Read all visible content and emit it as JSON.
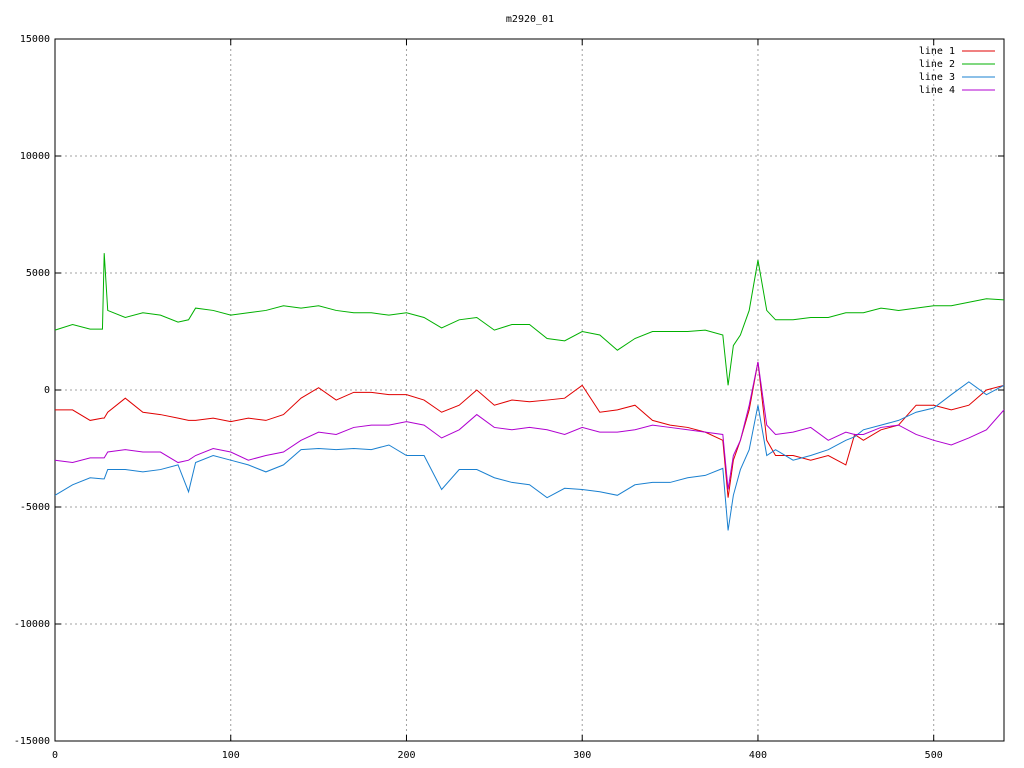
{
  "chart_data": {
    "type": "line",
    "title": "m2920_01",
    "x": [
      0,
      10,
      20,
      27,
      28,
      30,
      40,
      50,
      60,
      70,
      76,
      80,
      90,
      100,
      110,
      120,
      130,
      140,
      150,
      160,
      170,
      180,
      190,
      200,
      210,
      220,
      230,
      240,
      250,
      260,
      270,
      280,
      290,
      300,
      310,
      320,
      330,
      340,
      350,
      360,
      370,
      380,
      383,
      386,
      390,
      395,
      400,
      405,
      410,
      420,
      430,
      440,
      450,
      455,
      460,
      470,
      480,
      490,
      500,
      510,
      520,
      530,
      540
    ],
    "series": [
      {
        "name": "line 1",
        "color": "#e00000",
        "values": [
          -850,
          -850,
          -1300,
          -1200,
          -1200,
          -950,
          -350,
          -950,
          -1050,
          -1200,
          -1300,
          -1300,
          -1200,
          -1350,
          -1200,
          -1300,
          -1050,
          -350,
          100,
          -430,
          -100,
          -100,
          -200,
          -200,
          -430,
          -950,
          -650,
          0,
          -650,
          -430,
          -500,
          -430,
          -350,
          200,
          -950,
          -850,
          -650,
          -1300,
          -1500,
          -1600,
          -1800,
          -2150,
          -4600,
          -3000,
          -2150,
          -850,
          1200,
          -2150,
          -2800,
          -2800,
          -3000,
          -2800,
          -3200,
          -1900,
          -2150,
          -1700,
          -1500,
          -650,
          -650,
          -850,
          -650,
          0,
          200
        ]
      },
      {
        "name": "line 2",
        "color": "#00b000",
        "values": [
          2560,
          2800,
          2600,
          2600,
          5850,
          3400,
          3100,
          3300,
          3200,
          2900,
          3000,
          3500,
          3400,
          3200,
          3300,
          3400,
          3600,
          3500,
          3600,
          3400,
          3300,
          3300,
          3200,
          3300,
          3100,
          2650,
          3000,
          3100,
          2560,
          2800,
          2800,
          2200,
          2100,
          2500,
          2350,
          1700,
          2200,
          2500,
          2500,
          2500,
          2560,
          2350,
          200,
          1900,
          2350,
          3400,
          5550,
          3400,
          3000,
          3000,
          3100,
          3100,
          3300,
          3300,
          3300,
          3500,
          3400,
          3500,
          3600,
          3600,
          3750,
          3900,
          3850
        ]
      },
      {
        "name": "line 3",
        "color": "#1a80d0",
        "values": [
          -4500,
          -4050,
          -3750,
          -3800,
          -3800,
          -3400,
          -3400,
          -3500,
          -3400,
          -3200,
          -4350,
          -3100,
          -2800,
          -3000,
          -3200,
          -3500,
          -3200,
          -2550,
          -2500,
          -2550,
          -2500,
          -2550,
          -2350,
          -2800,
          -2800,
          -4250,
          -3400,
          -3400,
          -3750,
          -3950,
          -4050,
          -4600,
          -4200,
          -4250,
          -4350,
          -4500,
          -4050,
          -3950,
          -3950,
          -3750,
          -3650,
          -3350,
          -6000,
          -4500,
          -3400,
          -2550,
          -650,
          -2800,
          -2550,
          -3000,
          -2800,
          -2550,
          -2150,
          -2000,
          -1700,
          -1500,
          -1300,
          -950,
          -770,
          -200,
          350,
          -200,
          200
        ]
      },
      {
        "name": "line 4",
        "color": "#b000d0",
        "values": [
          -3000,
          -3100,
          -2900,
          -2900,
          -2900,
          -2650,
          -2550,
          -2650,
          -2650,
          -3100,
          -3000,
          -2800,
          -2500,
          -2650,
          -3000,
          -2800,
          -2650,
          -2150,
          -1800,
          -1900,
          -1600,
          -1500,
          -1500,
          -1350,
          -1500,
          -2050,
          -1700,
          -1050,
          -1600,
          -1700,
          -1600,
          -1700,
          -1900,
          -1600,
          -1800,
          -1800,
          -1700,
          -1500,
          -1600,
          -1700,
          -1800,
          -1900,
          -4250,
          -2800,
          -2150,
          -650,
          1200,
          -1500,
          -1900,
          -1800,
          -1600,
          -2150,
          -1800,
          -1900,
          -1900,
          -1600,
          -1500,
          -1900,
          -2150,
          -2350,
          -2050,
          -1700,
          -850
        ]
      }
    ],
    "xlim": [
      0,
      540
    ],
    "xticks": [
      0,
      100,
      200,
      300,
      400,
      500
    ],
    "ylim": [
      -15000,
      15000
    ],
    "yticks": [
      -15000,
      -10000,
      -5000,
      0,
      5000,
      10000,
      15000
    ],
    "grid": true,
    "legend": "top-right"
  }
}
